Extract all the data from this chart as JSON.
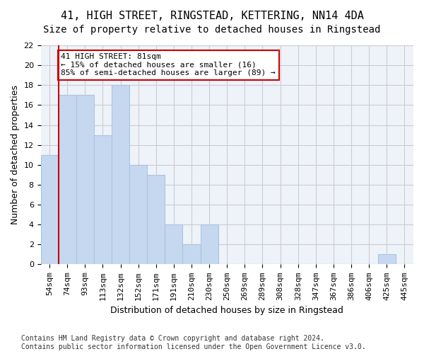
{
  "title1": "41, HIGH STREET, RINGSTEAD, KETTERING, NN14 4DA",
  "title2": "Size of property relative to detached houses in Ringstead",
  "xlabel": "Distribution of detached houses by size in Ringstead",
  "ylabel": "Number of detached properties",
  "categories": [
    "54sqm",
    "74sqm",
    "93sqm",
    "113sqm",
    "132sqm",
    "152sqm",
    "171sqm",
    "191sqm",
    "210sqm",
    "230sqm",
    "250sqm",
    "269sqm",
    "289sqm",
    "308sqm",
    "328sqm",
    "347sqm",
    "367sqm",
    "386sqm",
    "406sqm",
    "425sqm",
    "445sqm"
  ],
  "values": [
    11,
    17,
    17,
    13,
    18,
    10,
    9,
    4,
    2,
    4,
    0,
    0,
    0,
    0,
    0,
    0,
    0,
    0,
    0,
    1,
    0
  ],
  "bar_color": "#c5d8f0",
  "bar_edge_color": "#aac4e0",
  "vline_x": 1,
  "vline_color": "#cc0000",
  "annotation_text": "41 HIGH STREET: 81sqm\n← 15% of detached houses are smaller (16)\n85% of semi-detached houses are larger (89) →",
  "annotation_box_color": "#ffffff",
  "annotation_box_edge": "#cc0000",
  "ylim": [
    0,
    22
  ],
  "yticks": [
    0,
    2,
    4,
    6,
    8,
    10,
    12,
    14,
    16,
    18,
    20,
    22
  ],
  "footnote": "Contains HM Land Registry data © Crown copyright and database right 2024.\nContains public sector information licensed under the Open Government Licence v3.0.",
  "title1_fontsize": 11,
  "title2_fontsize": 10,
  "xlabel_fontsize": 9,
  "ylabel_fontsize": 9,
  "tick_fontsize": 8,
  "footnote_fontsize": 7,
  "grid_color": "#cccccc",
  "background_color": "#ffffff"
}
